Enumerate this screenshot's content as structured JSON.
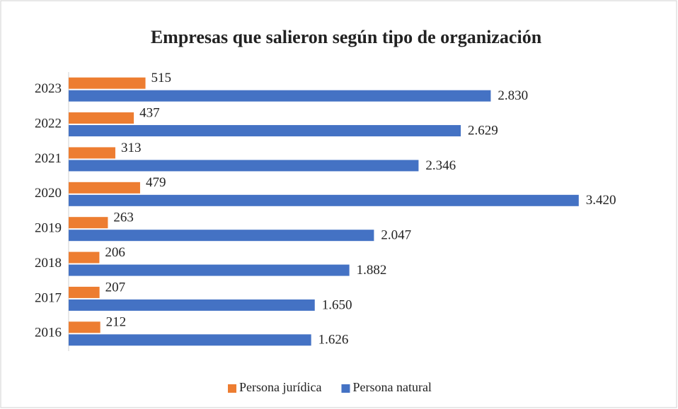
{
  "chart_data": {
    "type": "hbar",
    "title": "Empresas que salieron según tipo de organización",
    "categories": [
      "2023",
      "2022",
      "2021",
      "2020",
      "2019",
      "2018",
      "2017",
      "2016"
    ],
    "series": [
      {
        "name": "Persona jurídica",
        "color": "#ED7D31",
        "values": [
          515,
          437,
          313,
          479,
          263,
          206,
          207,
          212
        ],
        "value_labels": [
          "515",
          "437",
          "313",
          "479",
          "263",
          "206",
          "207",
          "212"
        ]
      },
      {
        "name": "Persona natural",
        "color": "#4472C4",
        "values": [
          2830,
          2629,
          2346,
          3420,
          2047,
          1882,
          1650,
          1626
        ],
        "value_labels": [
          "2.830",
          "2.629",
          "2.346",
          "3.420",
          "2.047",
          "1.882",
          "1.650",
          "1.626"
        ]
      }
    ],
    "xlim": [
      0,
      4000
    ],
    "legend": "bottom"
  }
}
